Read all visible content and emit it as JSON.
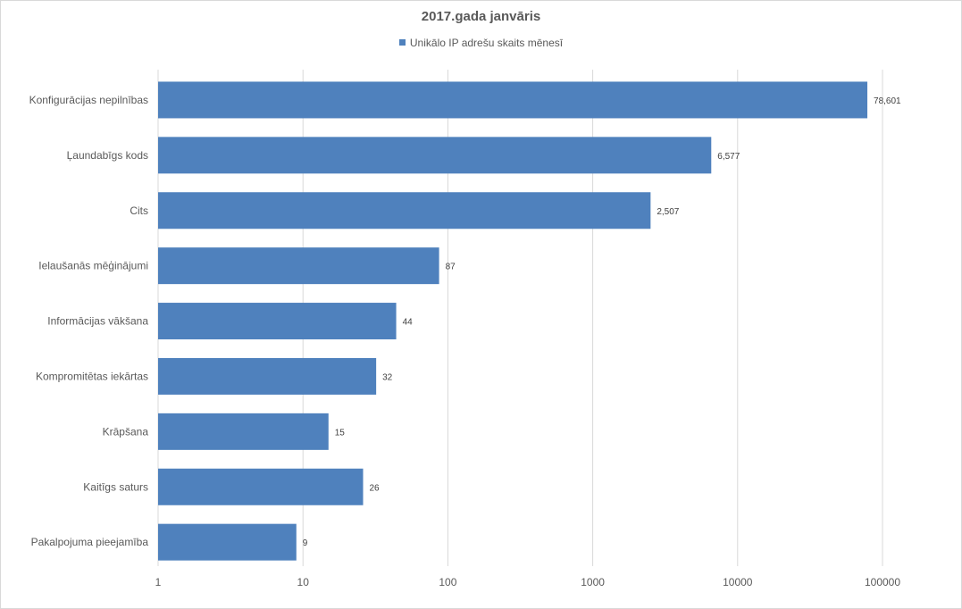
{
  "chart_data": {
    "type": "bar",
    "orientation": "horizontal",
    "title": "2017.gada janvāris",
    "legend": "top",
    "x_scale": "log",
    "xlim": [
      1,
      100000
    ],
    "x_ticks": [
      "1",
      "10",
      "100",
      "1000",
      "10000",
      "100000"
    ],
    "grid": true,
    "categories": [
      "Konfigurācijas nepilnības",
      "Ļaundabīgs kods",
      "Cits",
      "Ielaušanās mēģinājumi",
      "Informācijas vākšana",
      "Kompromitētas iekārtas",
      "Krāpšana",
      "Kaitīgs saturs",
      "Pakalpojuma pieejamība"
    ],
    "series": [
      {
        "name": "Unikālo IP adrešu skaits mēnesī",
        "color": "#4f81bd",
        "values": [
          78601,
          6577,
          2507,
          87,
          44,
          32,
          15,
          26,
          9
        ],
        "labels": [
          "78,601",
          "6,577",
          "2,507",
          "87",
          "44",
          "32",
          "15",
          "26",
          "9"
        ]
      }
    ]
  }
}
